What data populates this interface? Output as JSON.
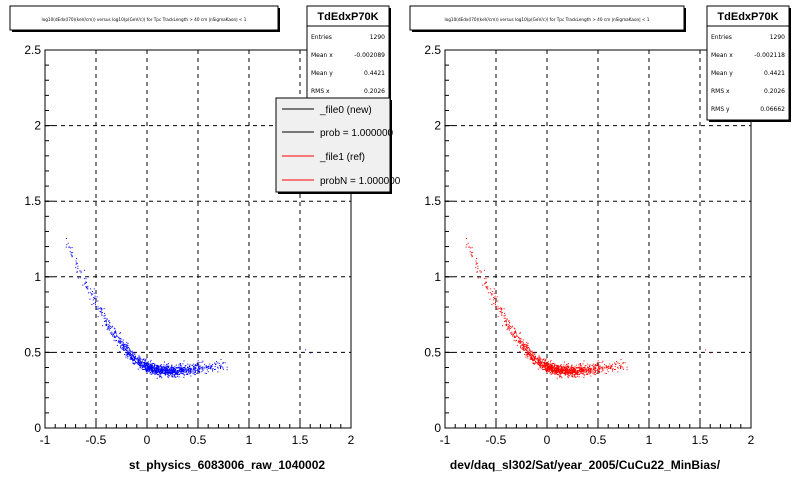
{
  "chart_data": [
    {
      "type": "scatter",
      "title": "log10(dEdx(I70)(keV/cm)) versus log10(p(GeV/c)) for Tpc TrackLength > 40 cm |nSigmaKaon| < 1",
      "xlabel": "st_physics_6083006_raw_1040002",
      "ylabel": "",
      "xlim": [
        -1,
        2
      ],
      "ylim": [
        0,
        2.5
      ],
      "x_ticks": [
        "-1",
        "-0.5",
        "0",
        "0.5",
        "1",
        "1.5",
        "2"
      ],
      "y_ticks": [
        "0",
        "0.5",
        "1",
        "1.5",
        "2",
        "2.5"
      ],
      "grid": true,
      "stats": {
        "name": "TdEdxP70K",
        "rows": [
          {
            "label": "Entries",
            "value": "1290"
          },
          {
            "label": "Mean x",
            "value": "-0.002089"
          },
          {
            "label": "Mean y",
            "value": "0.4421"
          },
          {
            "label": "RMS x",
            "value": "0.2026"
          }
        ]
      },
      "legend": {
        "placement": "top-right",
        "entries": [
          {
            "label": "_file0 (new)",
            "color": "#000000"
          },
          {
            "label": "prob = 1.000000",
            "color": "#000000"
          },
          {
            "label": "_file1 (ref)",
            "color": "#ff0000"
          },
          {
            "label": "probN = 1.000000",
            "color": "#ff0000"
          }
        ]
      },
      "series": [
        {
          "color": "#0000ff",
          "description_points": [
            [
              -0.78,
              1.22
            ],
            [
              -0.72,
              1.12
            ],
            [
              -0.62,
              0.98
            ],
            [
              -0.52,
              0.86
            ],
            [
              -0.45,
              0.76
            ],
            [
              -0.38,
              0.68
            ],
            [
              -0.3,
              0.6
            ],
            [
              -0.22,
              0.53
            ],
            [
              -0.14,
              0.47
            ],
            [
              -0.06,
              0.43
            ],
            [
              0.02,
              0.4
            ],
            [
              0.1,
              0.39
            ],
            [
              0.2,
              0.38
            ],
            [
              0.3,
              0.38
            ],
            [
              0.4,
              0.39
            ],
            [
              0.5,
              0.4
            ],
            [
              0.62,
              0.41
            ],
            [
              0.75,
              0.42
            ]
          ]
        }
      ]
    },
    {
      "type": "scatter",
      "title": "log10(dEdx(I70)(keV/cm)) versus log10(p(GeV/c)) for Tpc TrackLength > 40 cm |nSigmaKaon| < 1",
      "xlabel": "dev/daq_sl302/Sat/year_2005/CuCu22_MinBias/",
      "ylabel": "",
      "xlim": [
        -1,
        2
      ],
      "ylim": [
        0,
        2.5
      ],
      "x_ticks": [
        "-1",
        "-0.5",
        "0",
        "0.5",
        "1",
        "1.5",
        "2"
      ],
      "y_ticks": [
        "0",
        "0.5",
        "1",
        "1.5",
        "2",
        "2.5"
      ],
      "grid": true,
      "stats": {
        "name": "TdEdxP70K",
        "rows": [
          {
            "label": "Entries",
            "value": "1290"
          },
          {
            "label": "Mean x",
            "value": "-0.002118"
          },
          {
            "label": "Mean y",
            "value": "0.4421"
          },
          {
            "label": "RMS x",
            "value": "0.2026"
          },
          {
            "label": "RMS y",
            "value": "0.06662"
          }
        ]
      },
      "series": [
        {
          "color": "#ff0000",
          "description_points": [
            [
              -0.78,
              1.22
            ],
            [
              -0.72,
              1.12
            ],
            [
              -0.62,
              0.98
            ],
            [
              -0.52,
              0.86
            ],
            [
              -0.45,
              0.76
            ],
            [
              -0.38,
              0.68
            ],
            [
              -0.3,
              0.6
            ],
            [
              -0.22,
              0.53
            ],
            [
              -0.14,
              0.47
            ],
            [
              -0.06,
              0.43
            ],
            [
              0.02,
              0.4
            ],
            [
              0.1,
              0.39
            ],
            [
              0.2,
              0.38
            ],
            [
              0.3,
              0.38
            ],
            [
              0.4,
              0.39
            ],
            [
              0.5,
              0.4
            ],
            [
              0.62,
              0.41
            ],
            [
              0.75,
              0.42
            ]
          ]
        }
      ]
    }
  ]
}
